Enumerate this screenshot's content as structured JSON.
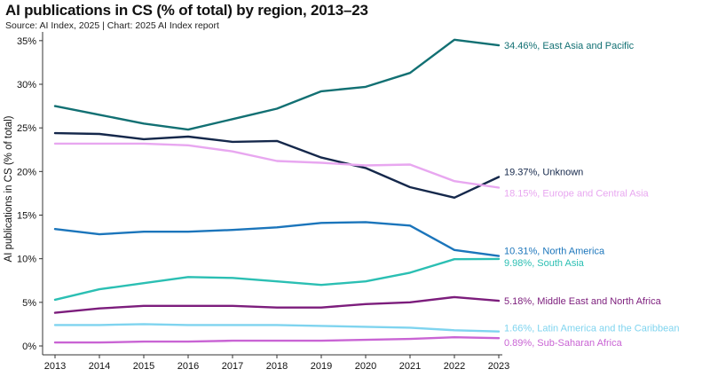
{
  "header": {
    "title": "AI publications in CS (% of total) by region, 2013–23",
    "source": "Source: AI Index, 2025 | Chart: 2025 AI Index report"
  },
  "chart_data": {
    "type": "line",
    "title": "AI publications in CS (% of total) by region, 2013–23",
    "xlabel": "",
    "ylabel": "AI publications in CS (% of total)",
    "x": [
      2013,
      2014,
      2015,
      2016,
      2017,
      2018,
      2019,
      2020,
      2021,
      2022,
      2023
    ],
    "x_tick_labels": [
      "2013",
      "2014",
      "2015",
      "2016",
      "2017",
      "2018",
      "2019",
      "2020",
      "2021",
      "2022",
      "2023"
    ],
    "ylim": [
      0,
      36
    ],
    "y_ticks": [
      0,
      5,
      10,
      15,
      20,
      25,
      30,
      35
    ],
    "y_tick_labels": [
      "0%",
      "5%",
      "10%",
      "15%",
      "20%",
      "25%",
      "30%",
      "35%"
    ],
    "grid": false,
    "series": [
      {
        "name": "East Asia and Pacific",
        "color": "#127073",
        "label": "34.46%, East Asia and Pacific",
        "values": [
          27.5,
          26.5,
          25.5,
          24.8,
          26.0,
          27.2,
          29.2,
          29.7,
          31.3,
          35.1,
          34.46
        ]
      },
      {
        "name": "Unknown",
        "color": "#15284b",
        "label": "19.37%, Unknown",
        "values": [
          24.4,
          24.3,
          23.7,
          24.0,
          23.4,
          23.5,
          21.6,
          20.4,
          18.2,
          17.0,
          19.37
        ]
      },
      {
        "name": "Europe and Central Asia",
        "color": "#e8a7f0",
        "label": "18.15%, Europe and Central Asia",
        "values": [
          23.2,
          23.2,
          23.2,
          23.0,
          22.3,
          21.2,
          21.0,
          20.7,
          20.8,
          18.9,
          18.15
        ]
      },
      {
        "name": "North America",
        "color": "#1b75bb",
        "label": "10.31%, North America",
        "values": [
          13.4,
          12.8,
          13.1,
          13.1,
          13.3,
          13.6,
          14.1,
          14.2,
          13.8,
          11.0,
          10.31
        ]
      },
      {
        "name": "South Asia",
        "color": "#2bbfb3",
        "label": "9.98%, South Asia",
        "values": [
          5.3,
          6.5,
          7.2,
          7.9,
          7.8,
          7.4,
          7.0,
          7.4,
          8.4,
          9.95,
          9.98
        ]
      },
      {
        "name": "Middle East and North Africa",
        "color": "#7c1d7c",
        "label": "5.18%, Middle East and North Africa",
        "values": [
          3.8,
          4.3,
          4.6,
          4.6,
          4.6,
          4.4,
          4.4,
          4.8,
          5.0,
          5.6,
          5.18
        ]
      },
      {
        "name": "Latin America and the Caribbean",
        "color": "#7fd4ef",
        "label": "1.66%, Latin America and the Caribbean",
        "values": [
          2.4,
          2.4,
          2.5,
          2.4,
          2.4,
          2.4,
          2.3,
          2.2,
          2.1,
          1.8,
          1.66
        ]
      },
      {
        "name": "Sub-Saharan Africa",
        "color": "#c964d4",
        "label": "0.89%, Sub-Saharan Africa",
        "values": [
          0.4,
          0.4,
          0.5,
          0.5,
          0.6,
          0.6,
          0.6,
          0.7,
          0.8,
          1.0,
          0.89
        ]
      }
    ]
  }
}
